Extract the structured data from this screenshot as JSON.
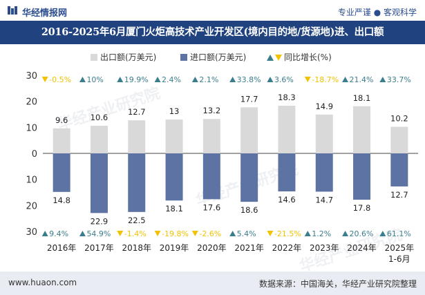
{
  "header": {
    "brand": "华经情报网",
    "tagline": "专业严谨 ● 客观科学",
    "title": "2016-2025年6月厦门火炬高技术产业开发区(境内目的地/货源地)进、出口额"
  },
  "footer": {
    "website": "www.huaon.com",
    "source": "数据来源：中国海关，华经产业研究院整理"
  },
  "watermark": "华经产业研究院",
  "chart_data": {
    "type": "bar",
    "categories": [
      "2016年",
      "2017年",
      "2018年",
      "2019年",
      "2020年",
      "2021年",
      "2022年",
      "2023年",
      "2024年",
      "2025年\n1-6月"
    ],
    "series": [
      {
        "name": "出口额(万美元)",
        "color": "#d9d9d9",
        "values": [
          9.6,
          10.6,
          12.7,
          13,
          13.2,
          17.7,
          18.3,
          14.9,
          18.1,
          10.2
        ]
      },
      {
        "name": "进口额(万美元)",
        "color": "#5c73a3",
        "values": [
          14.8,
          22.9,
          22.5,
          18.1,
          17.6,
          18.6,
          14.6,
          14.7,
          17.8,
          12.7
        ]
      }
    ],
    "growth_legend": "同比增长(%)",
    "export_growth": [
      "-0.5%",
      "10%",
      "19.9%",
      "2.4%",
      "2.1%",
      "33.8%",
      "3.6%",
      "-18.7%",
      "21.4%",
      "33.7%"
    ],
    "import_growth": [
      "9.4%",
      "54.9%",
      "-1.4%",
      "-19.8%",
      "-2.6%",
      "5.4%",
      "-21.5%",
      "1.2%",
      "20.6%",
      "61.1%"
    ],
    "yticks": [
      "30",
      "20",
      "10",
      "0",
      "10",
      "20",
      "30"
    ],
    "ylim": [
      -30,
      30
    ],
    "up_color": "#3a7d8c",
    "down_color": "#f2c200",
    "legend_position": "top-center"
  }
}
